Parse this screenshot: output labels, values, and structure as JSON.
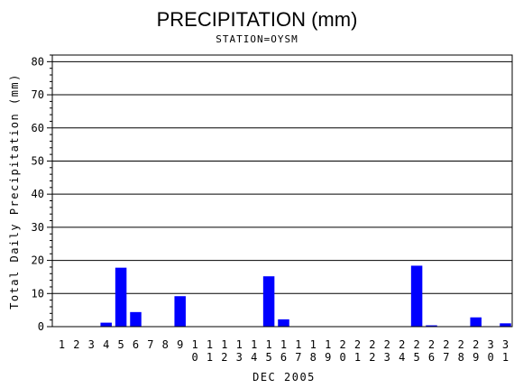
{
  "chart_data": {
    "type": "bar",
    "title": "PRECIPITATION (mm)",
    "subtitle": "STATION=OYSM",
    "xlabel": "DEC 2005",
    "ylabel": "Total Daily Precipitation (mm)",
    "ylim": [
      0,
      82
    ],
    "yticks": [
      0,
      10,
      20,
      30,
      40,
      50,
      60,
      70,
      80
    ],
    "grid": true,
    "bar_color": "#0000ff",
    "categories": [
      "1",
      "2",
      "3",
      "4",
      "5",
      "6",
      "7",
      "8",
      "9",
      "10",
      "11",
      "12",
      "13",
      "14",
      "15",
      "16",
      "17",
      "18",
      "19",
      "20",
      "21",
      "22",
      "23",
      "24",
      "25",
      "26",
      "27",
      "28",
      "29",
      "30",
      "31"
    ],
    "values": [
      0,
      0,
      0,
      1.2,
      17.8,
      4.4,
      0,
      0,
      9.2,
      0,
      0,
      0,
      0,
      0,
      15.2,
      2.2,
      0,
      0,
      0,
      0,
      0,
      0,
      0,
      0,
      18.4,
      0.4,
      0,
      0,
      2.8,
      0,
      1.0
    ]
  }
}
